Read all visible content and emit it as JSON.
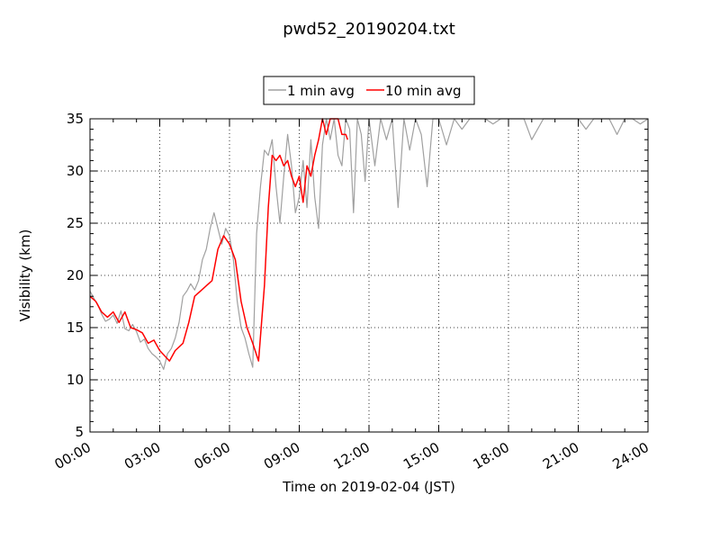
{
  "chart_data": {
    "type": "line",
    "title": "pwd52_20190204.txt",
    "xlabel": "Time on 2019-02-04 (JST)",
    "ylabel": "Visibility (km)",
    "xlim": [
      "00:00",
      "24:00"
    ],
    "ylim": [
      5,
      35
    ],
    "x_ticks": [
      "00:00",
      "03:00",
      "06:00",
      "09:00",
      "12:00",
      "15:00",
      "18:00",
      "21:00",
      "24:00"
    ],
    "y_ticks": [
      5,
      10,
      15,
      20,
      25,
      30,
      35
    ],
    "grid": true,
    "legend_position": "top-center",
    "series": [
      {
        "name": "1 min avg",
        "color": "#a0a0a0",
        "x": [
          "00:00",
          "00:10",
          "00:20",
          "00:30",
          "00:40",
          "00:50",
          "01:00",
          "01:10",
          "01:20",
          "01:30",
          "01:40",
          "01:50",
          "02:00",
          "02:10",
          "02:20",
          "02:30",
          "02:40",
          "02:50",
          "03:00",
          "03:10",
          "03:20",
          "03:30",
          "03:40",
          "03:50",
          "04:00",
          "04:10",
          "04:20",
          "04:30",
          "04:40",
          "04:50",
          "05:00",
          "05:10",
          "05:20",
          "05:30",
          "05:40",
          "05:50",
          "06:00",
          "06:10",
          "06:20",
          "06:30",
          "06:40",
          "06:50",
          "07:00",
          "07:10",
          "07:20",
          "07:30",
          "07:40",
          "07:50",
          "08:00",
          "08:10",
          "08:20",
          "08:30",
          "08:40",
          "08:50",
          "09:00",
          "09:10",
          "09:20",
          "09:30",
          "09:40",
          "09:50",
          "10:00",
          "10:10",
          "10:20",
          "10:30",
          "10:40",
          "10:50",
          "11:00",
          "11:10",
          "11:20",
          "11:30",
          "11:40",
          "11:50",
          "12:00",
          "12:15",
          "12:30",
          "12:45",
          "13:00",
          "13:15",
          "13:30",
          "13:45",
          "14:00",
          "14:15",
          "14:30",
          "14:45",
          "15:00",
          "15:20",
          "15:40",
          "16:00",
          "16:20",
          "16:40",
          "17:00",
          "17:20",
          "17:40",
          "18:00",
          "18:20",
          "18:40",
          "19:00",
          "19:30",
          "20:00",
          "20:30",
          "21:00",
          "21:20",
          "21:40",
          "22:00",
          "22:20",
          "22:40",
          "23:00",
          "23:20",
          "23:40",
          "24:00"
        ],
        "y": [
          18.5,
          17.8,
          17.2,
          16.3,
          15.6,
          15.8,
          16.2,
          15.4,
          16.6,
          14.9,
          14.7,
          15.3,
          14.6,
          13.6,
          13.9,
          13.0,
          12.5,
          12.2,
          11.8,
          11.0,
          12.5,
          13.0,
          14.0,
          15.5,
          18.0,
          18.5,
          19.2,
          18.6,
          19.5,
          21.5,
          22.5,
          24.5,
          26.0,
          24.5,
          23.0,
          24.5,
          23.8,
          21.5,
          17.5,
          15.0,
          14.0,
          12.5,
          11.2,
          24.0,
          28.5,
          32.0,
          31.5,
          33.0,
          28.5,
          25.0,
          29.5,
          33.5,
          30.5,
          26.0,
          27.5,
          31.0,
          26.5,
          33.0,
          27.5,
          24.5,
          32.5,
          35,
          33.0,
          35,
          31.5,
          30.5,
          35,
          34.0,
          26.0,
          35,
          33.5,
          29.0,
          35,
          30.5,
          35,
          33.0,
          35,
          26.5,
          35,
          32.0,
          35,
          33.5,
          28.5,
          35,
          35,
          32.5,
          35,
          34.0,
          35,
          35,
          35,
          34.5,
          35,
          35,
          35,
          35,
          33.0,
          35,
          35,
          35,
          35,
          34.0,
          35,
          35,
          35,
          33.5,
          35,
          35,
          34.5,
          35
        ]
      },
      {
        "name": "10 min avg",
        "color": "#ff0000",
        "x": [
          "00:00",
          "00:15",
          "00:30",
          "00:45",
          "01:00",
          "01:15",
          "01:30",
          "01:45",
          "02:00",
          "02:15",
          "02:30",
          "02:45",
          "03:00",
          "03:15",
          "03:25",
          "03:40",
          "04:00",
          "04:15",
          "04:30",
          "04:45",
          "05:00",
          "05:15",
          "05:30",
          "05:45",
          "06:00",
          "06:15",
          "06:30",
          "06:45",
          "07:00",
          "07:15",
          "07:30",
          "07:40",
          "07:50",
          "08:00",
          "08:10",
          "08:20",
          "08:30",
          "08:40",
          "08:50",
          "09:00",
          "09:10",
          "09:20",
          "09:30",
          "09:40",
          "09:50",
          "10:00",
          "10:10",
          "10:20",
          "10:30",
          "10:40",
          "10:50",
          "11:00",
          "11:05"
        ],
        "y": [
          18.0,
          17.5,
          16.5,
          16.0,
          16.5,
          15.5,
          16.5,
          15.0,
          14.8,
          14.5,
          13.5,
          13.8,
          12.8,
          12.2,
          11.8,
          12.8,
          13.5,
          15.5,
          18.0,
          18.5,
          19.0,
          19.5,
          22.5,
          23.8,
          23.0,
          21.5,
          17.5,
          15.0,
          13.5,
          11.8,
          19.0,
          26.5,
          31.5,
          31.0,
          31.5,
          30.5,
          31.0,
          29.5,
          28.5,
          29.5,
          27.0,
          30.5,
          29.5,
          31.5,
          33.0,
          35.0,
          33.5,
          35.0,
          35.0,
          35.0,
          33.5,
          33.5,
          33.0
        ]
      }
    ]
  }
}
